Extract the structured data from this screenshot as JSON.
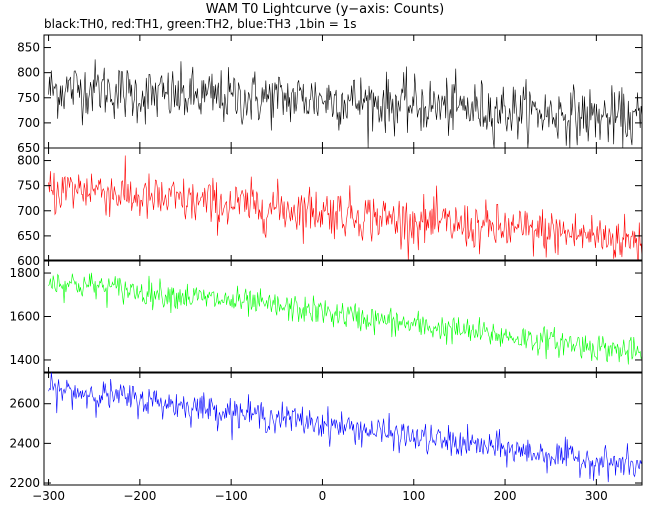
{
  "chart_data": {
    "type": "line",
    "title": "WAM T0 Lightcurve (y−axis: Counts)",
    "subtitle": "black:TH0, red:TH1, green:TH2, blue:TH3 ,1bin = 1s",
    "x_range": [
      -305,
      350
    ],
    "x_ticks": [
      -300,
      -200,
      -100,
      0,
      100,
      200,
      300
    ],
    "x_tick_labels": [
      "−300",
      "−200",
      "−100",
      "0",
      "100",
      "200",
      "300"
    ],
    "grid": false,
    "panels": [
      {
        "series_name": "TH0",
        "color": "#000000",
        "ylim": [
          650,
          875
        ],
        "y_ticks": [
          650,
          700,
          750,
          800,
          850
        ],
        "trend": {
          "x": [
            -300,
            -250,
            -200,
            -100,
            0,
            100,
            200,
            300,
            350
          ],
          "y": [
            765,
            770,
            755,
            750,
            748,
            735,
            725,
            712,
            705
          ]
        },
        "noise_sd": 28
      },
      {
        "series_name": "TH1",
        "color": "#ff0000",
        "ylim": [
          600,
          825
        ],
        "y_ticks": [
          600,
          650,
          700,
          750,
          800
        ],
        "trend": {
          "x": [
            -300,
            -250,
            -200,
            -100,
            0,
            100,
            200,
            300,
            350
          ],
          "y": [
            740,
            745,
            725,
            712,
            700,
            678,
            663,
            650,
            638
          ]
        },
        "noise_sd": 24
      },
      {
        "series_name": "TH2",
        "color": "#00ff00",
        "ylim": [
          1340,
          1860
        ],
        "y_ticks": [
          1400,
          1600,
          1800
        ],
        "trend": {
          "x": [
            -300,
            -250,
            -200,
            -100,
            0,
            100,
            200,
            300,
            350
          ],
          "y": [
            1760,
            1740,
            1715,
            1670,
            1620,
            1560,
            1510,
            1460,
            1430
          ]
        },
        "noise_sd": 32
      },
      {
        "series_name": "TH3",
        "color": "#0000ff",
        "ylim": [
          2190,
          2760
        ],
        "y_ticks": [
          2200,
          2400,
          2600
        ],
        "trend": {
          "x": [
            -300,
            -250,
            -200,
            -100,
            0,
            100,
            200,
            300,
            350
          ],
          "y": [
            2670,
            2650,
            2620,
            2560,
            2500,
            2430,
            2370,
            2310,
            2280
          ]
        },
        "noise_sd": 38
      }
    ]
  }
}
